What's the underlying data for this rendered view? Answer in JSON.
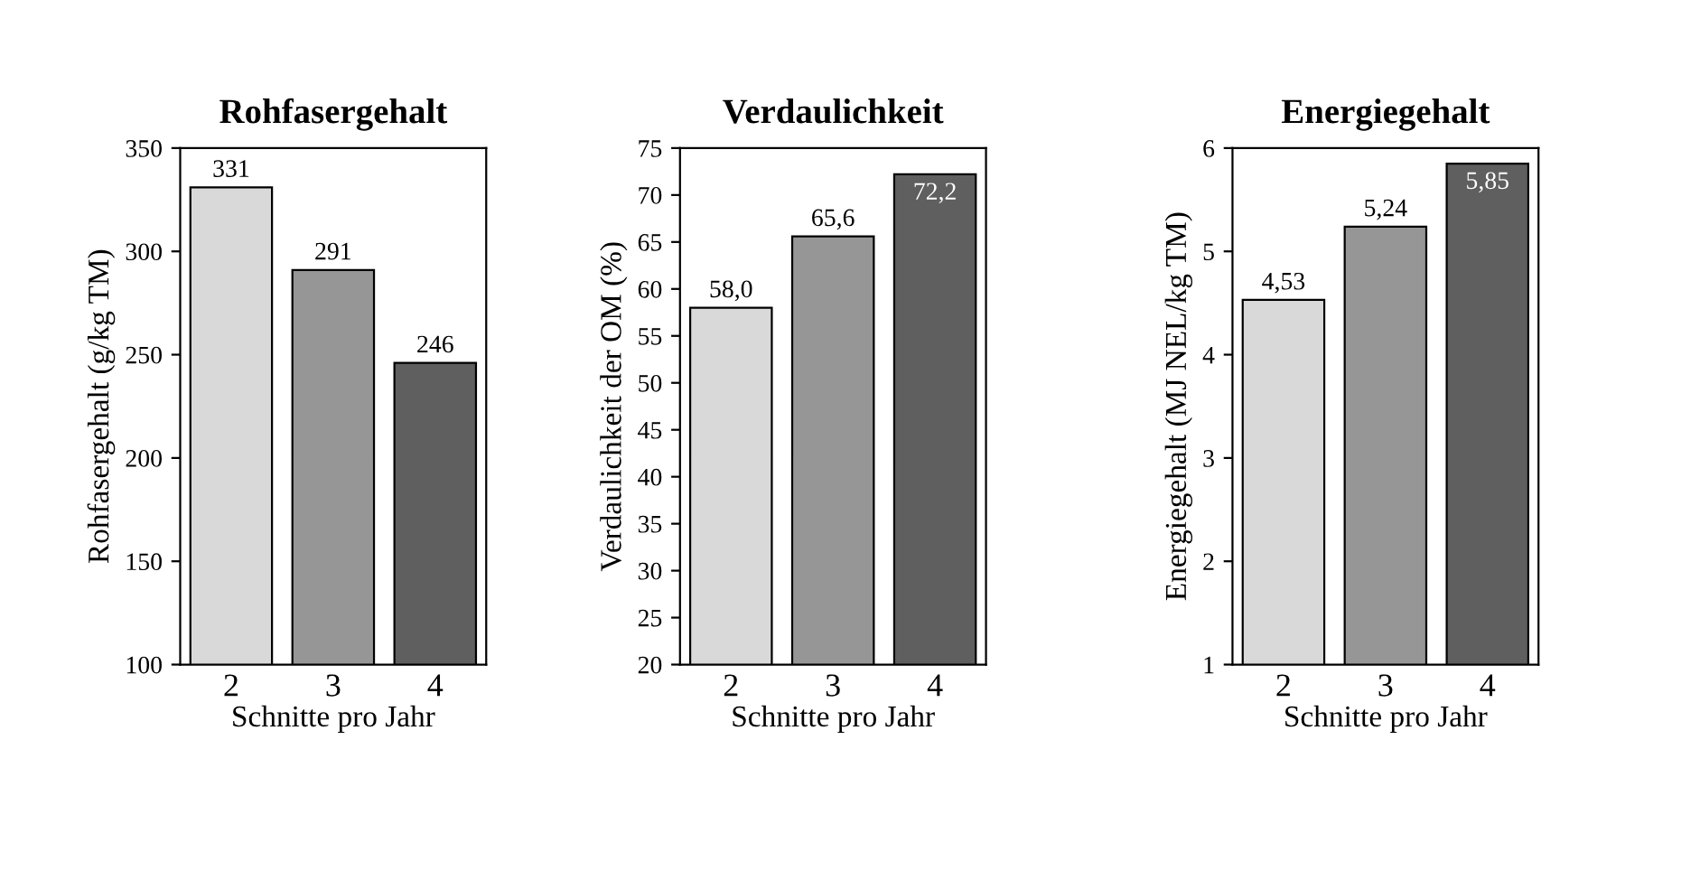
{
  "chart_data": [
    {
      "type": "bar",
      "title": "Rohfasergehalt",
      "xlabel": "Schnitte pro Jahr",
      "ylabel": "Rohfasergehalt (g/kg TM)",
      "categories": [
        "2",
        "3",
        "4"
      ],
      "values": [
        331,
        291,
        246
      ],
      "colors": [
        "#d9d9d9",
        "#969696",
        "#5f5f5f"
      ],
      "value_labels": [
        "331",
        "291",
        "246"
      ],
      "ylim": [
        100,
        350
      ],
      "yticks": [
        100,
        150,
        200,
        250,
        300,
        350
      ],
      "grid": false,
      "legend": false
    },
    {
      "type": "bar",
      "title": "Verdaulichkeit",
      "xlabel": "Schnitte pro Jahr",
      "ylabel": "Verdaulichkeit der OM (%)",
      "categories": [
        "2",
        "3",
        "4"
      ],
      "values": [
        58.0,
        65.6,
        72.2
      ],
      "colors": [
        "#d9d9d9",
        "#969696",
        "#5f5f5f"
      ],
      "value_labels": [
        "58,0",
        "65,6",
        "72,2"
      ],
      "ylim": [
        20,
        75
      ],
      "yticks": [
        20,
        25,
        30,
        35,
        40,
        45,
        50,
        55,
        60,
        65,
        70,
        75
      ],
      "grid": false,
      "legend": false
    },
    {
      "type": "bar",
      "title": "Energiegehalt",
      "xlabel": "Schnitte pro Jahr",
      "ylabel": "Energiegehalt (MJ NEL/kg TM)",
      "categories": [
        "2",
        "3",
        "4"
      ],
      "values": [
        4.53,
        5.24,
        5.85
      ],
      "colors": [
        "#d9d9d9",
        "#969696",
        "#5f5f5f"
      ],
      "value_labels": [
        "4,53",
        "5,24",
        "5,85"
      ],
      "ylim": [
        1,
        6
      ],
      "yticks": [
        1,
        2,
        3,
        4,
        5,
        6
      ],
      "grid": false,
      "legend": false
    }
  ]
}
